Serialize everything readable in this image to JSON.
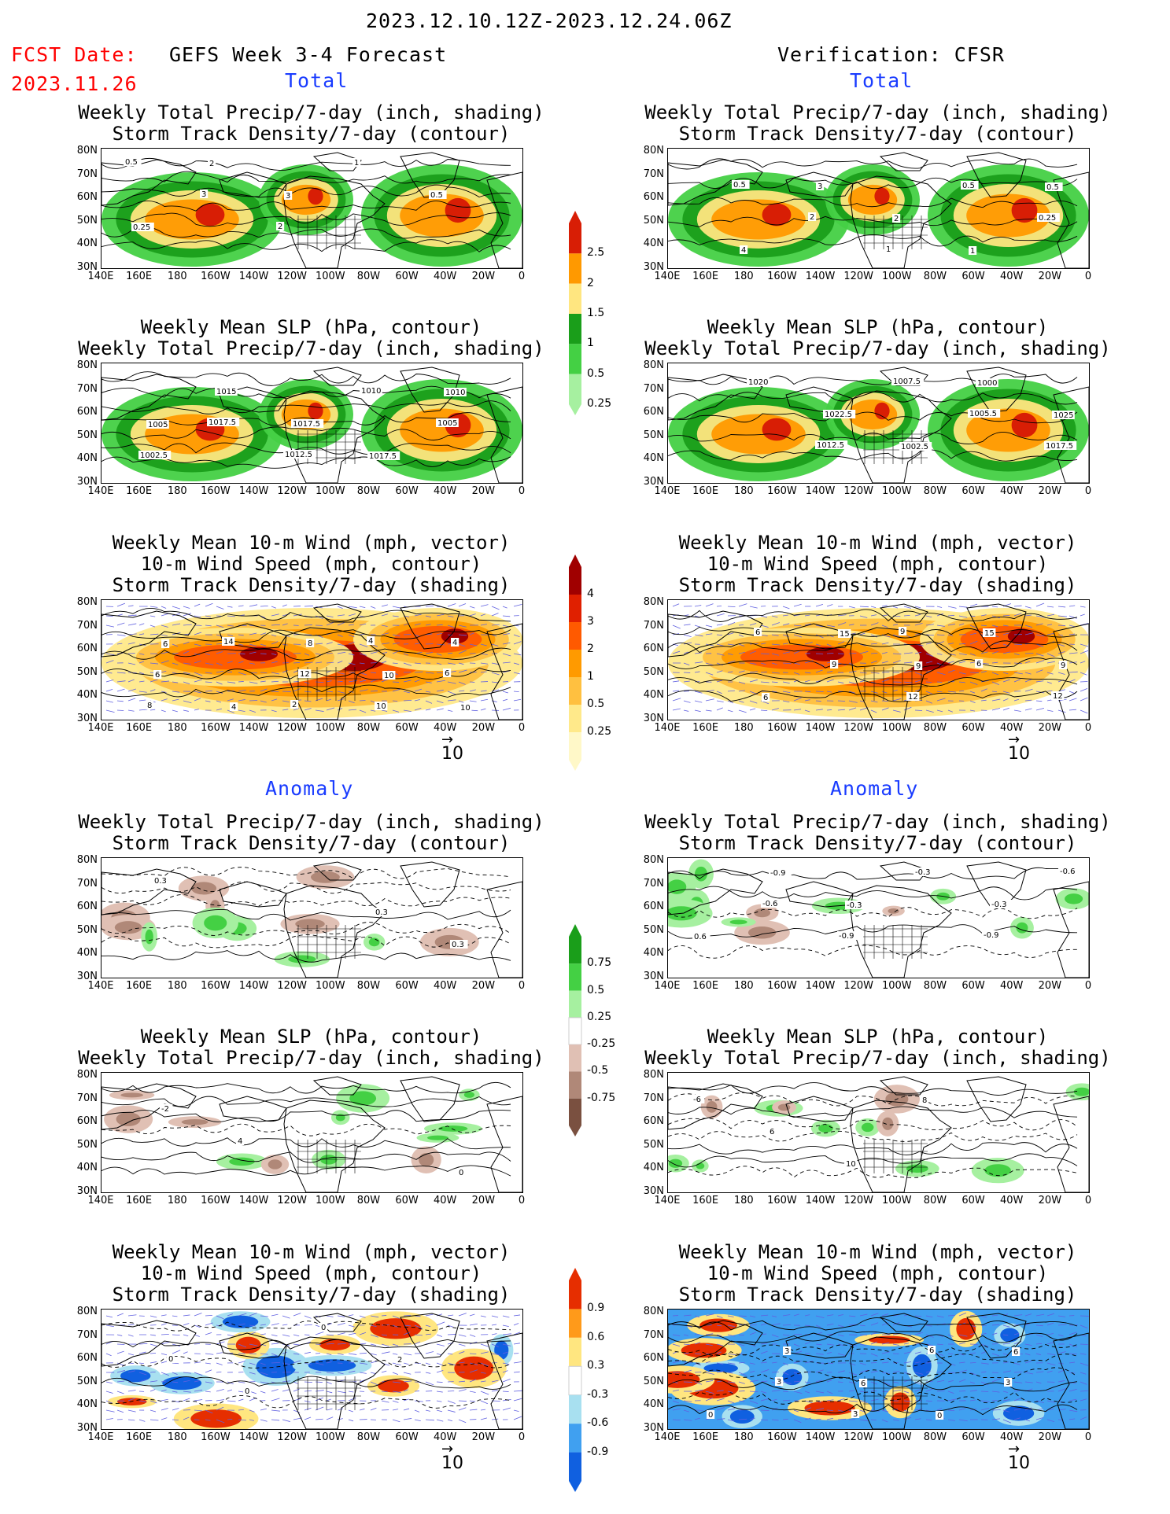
{
  "header": {
    "date_range": "2023.12.10.12Z-2023.12.24.06Z",
    "fcst_label": "FCST Date:",
    "fcst_date": "2023.11.26",
    "left_title": "GEFS Week 3-4 Forecast",
    "right_title": "Verification: CFSR",
    "total": "Total",
    "anomaly": "Anomaly"
  },
  "panel_titles": {
    "precip_storm": [
      "Weekly Total Precip/7-day (inch, shading)",
      "Storm Track Density/7-day (contour)"
    ],
    "slp_precip": [
      "Weekly Mean SLP (hPa, contour)",
      "Weekly Total Precip/7-day (inch, shading)"
    ],
    "wind_storm": [
      "Weekly Mean 10-m Wind (mph, vector)",
      "10-m Wind Speed (mph, contour)",
      "Storm Track Density/7-day (shading)"
    ]
  },
  "axes": {
    "lat_labels": [
      "80N",
      "70N",
      "60N",
      "50N",
      "40N",
      "30N"
    ],
    "lon_labels": [
      "140E",
      "160E",
      "180",
      "160W",
      "140W",
      "120W",
      "100W",
      "80W",
      "60W",
      "40W",
      "20W",
      "0"
    ]
  },
  "vector_ref": "10",
  "colorbars": {
    "precip_total": {
      "labels": [
        "2.5",
        "2",
        "1.5",
        "1",
        "0.5",
        "0.25"
      ],
      "colors": [
        "#d81e05",
        "#ff9900",
        "#ffe680",
        "#1a9e1a",
        "#44d044",
        "#a6f0a0"
      ]
    },
    "storm_total": {
      "labels": [
        "4",
        "3",
        "2",
        "1",
        "0.5",
        "0.25"
      ],
      "colors": [
        "#a00000",
        "#e02000",
        "#ff5a00",
        "#ff9a00",
        "#ffc040",
        "#ffe98a",
        "#fff8c8"
      ]
    },
    "precip_anom": {
      "labels": [
        "0.75",
        "0.5",
        "0.25",
        "-0.25",
        "-0.5",
        "-0.75"
      ],
      "colors": [
        "#1a9e1a",
        "#44d044",
        "#a6f0a0",
        "#ffffff",
        "#e0c0b4",
        "#b08878",
        "#7a5040"
      ]
    },
    "storm_anom": {
      "labels": [
        "0.9",
        "0.6",
        "0.3",
        "-0.3",
        "-0.6",
        "-0.9"
      ],
      "colors": [
        "#e62e00",
        "#ff9a1a",
        "#ffe680",
        "#ffffff",
        "#a8e0f0",
        "#40a0f0",
        "#1060e0"
      ]
    }
  },
  "panels": [
    {
      "id": "gefs-total-precip-storm",
      "labels": [
        "0.5",
        "3",
        "2",
        "1",
        "0.5",
        "0.25",
        "2",
        "3"
      ]
    },
    {
      "id": "cfsr-total-precip-storm",
      "labels": [
        "0.5",
        "2",
        "1",
        "0.5",
        "0.25",
        "4",
        "3",
        "2",
        "1",
        "0.5"
      ]
    },
    {
      "id": "gefs-total-slp",
      "labels": [
        "1017.5",
        "1012.5",
        "1010",
        "1005",
        "1002.5",
        "1015",
        "1017.5",
        "1017.5",
        "1010",
        "1005"
      ]
    },
    {
      "id": "cfsr-total-slp",
      "labels": [
        "1012.5",
        "1007.5",
        "1005.5",
        "1017.5",
        "1020",
        "1022.5",
        "1002.5",
        "1000",
        "1025"
      ]
    },
    {
      "id": "gefs-total-wind",
      "labels": [
        "2",
        "4",
        "6",
        "8",
        "14",
        "12",
        "10",
        "4",
        "6",
        "4",
        "8",
        "10",
        "10",
        "6"
      ]
    },
    {
      "id": "cfsr-total-wind",
      "labels": [
        "9",
        "6",
        "12",
        "6",
        "9",
        "12",
        "15",
        "9",
        "6",
        "15",
        "9"
      ]
    },
    {
      "id": "gefs-anom-precip-storm",
      "labels": [
        "0.3",
        "0.3",
        "0.3"
      ]
    },
    {
      "id": "cfsr-anom-precip-storm",
      "labels": [
        "-0.9",
        "-0.6",
        "-0.6",
        "-0.9",
        "-0.3",
        "-0.3",
        "0.6",
        "-0.9",
        "-0.3"
      ]
    },
    {
      "id": "gefs-anom-slp",
      "labels": [
        "0",
        "-2",
        "4"
      ]
    },
    {
      "id": "cfsr-anom-slp",
      "labels": [
        "-6",
        "6",
        "10",
        "8"
      ]
    },
    {
      "id": "gefs-anom-wind",
      "labels": [
        "0",
        "0",
        "0",
        "2"
      ]
    },
    {
      "id": "cfsr-anom-wind",
      "labels": [
        "3",
        "3",
        "6",
        "3",
        "0",
        "3",
        "6",
        "0",
        "6"
      ]
    }
  ]
}
